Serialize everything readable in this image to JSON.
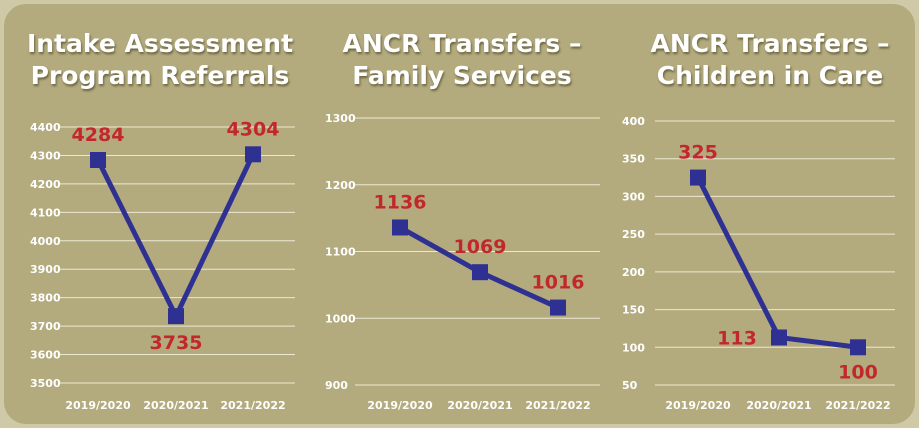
{
  "chart_data": [
    {
      "type": "line",
      "title": "Intake Assessment Program Referrals",
      "categories": [
        "2019/2020",
        "2020/2021",
        "2021/2022"
      ],
      "values": [
        4284,
        3735,
        4304
      ],
      "color": "#2e3192",
      "label_color": "#c1272d",
      "ylim": [
        3500,
        4400
      ],
      "yticks": [
        3500,
        3600,
        3700,
        3800,
        3900,
        4000,
        4100,
        4200,
        4300,
        4400
      ],
      "grid": true
    },
    {
      "type": "line",
      "title": "ANCR Transfers – Family Services",
      "categories": [
        "2019/2020",
        "2020/2021",
        "2021/2022"
      ],
      "values": [
        1136,
        1069,
        1016
      ],
      "color": "#2e3192",
      "label_color": "#c1272d",
      "ylim": [
        900,
        1300
      ],
      "yticks": [
        900,
        1000,
        1100,
        1200,
        1300
      ],
      "grid": true
    },
    {
      "type": "line",
      "title": "ANCR Transfers – Children in Care",
      "categories": [
        "2019/2020",
        "2020/2021",
        "2021/2022"
      ],
      "values": [
        325,
        113,
        100
      ],
      "color": "#2e3192",
      "label_color": "#c1272d",
      "ylim": [
        50,
        400
      ],
      "yticks": [
        50,
        100,
        150,
        200,
        250,
        300,
        350,
        400
      ],
      "grid": true
    }
  ]
}
